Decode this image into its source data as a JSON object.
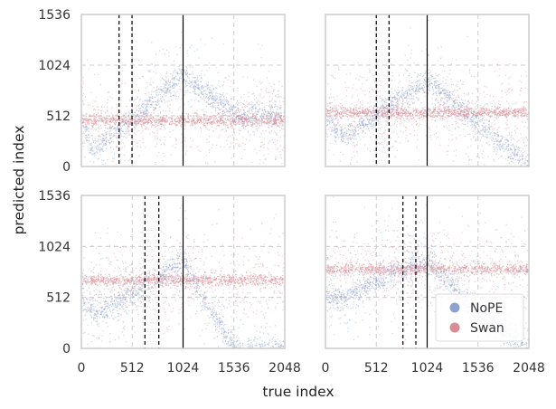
{
  "colors": {
    "nope": "#8ea3cf",
    "swan": "#d98c94",
    "grid": "#cccccc",
    "frame": "#cccccc"
  },
  "chart_data": {
    "type": "scatter",
    "xlabel": "true index",
    "ylabel": "predicted index",
    "xticks": [
      "0",
      "512",
      "1024",
      "1536",
      "2048"
    ],
    "yticks": [
      "0",
      "512",
      "1024",
      "1536"
    ],
    "xlim": [
      0,
      2048
    ],
    "ylim": [
      0,
      1536
    ],
    "legend": {
      "position": "bottom-right",
      "entries": [
        "NoPE",
        "Swan"
      ]
    },
    "panels": [
      {
        "name": "top-left",
        "vlines_dashed": [
          380,
          510
        ],
        "vline_solid": 1024,
        "series": [
          {
            "name": "NoPE",
            "trend_x": [
              0,
              100,
              512,
              1024,
              1300,
              1600,
              2048
            ],
            "trend_y": [
              500,
              170,
              480,
              930,
              700,
              520,
              520
            ]
          },
          {
            "name": "Swan",
            "level": 470
          }
        ]
      },
      {
        "name": "top-right",
        "vlines_dashed": [
          512,
          640
        ],
        "vline_solid": 1024,
        "series": [
          {
            "name": "NoPE",
            "trend_x": [
              0,
              200,
              512,
              1024,
              1500,
              2048
            ],
            "trend_y": [
              500,
              310,
              520,
              880,
              470,
              0
            ]
          },
          {
            "name": "Swan",
            "level": 550
          }
        ]
      },
      {
        "name": "bottom-left",
        "vlines_dashed": [
          640,
          780
        ],
        "vline_solid": 1024,
        "series": [
          {
            "name": "NoPE",
            "trend_x": [
              0,
              150,
              512,
              1024,
              1300,
              1550
            ],
            "trend_y": [
              500,
              340,
              560,
              900,
              380,
              0
            ]
          },
          {
            "name": "Swan",
            "level": 690
          }
        ]
      },
      {
        "name": "bottom-right",
        "vlines_dashed": [
          780,
          910
        ],
        "vline_solid": 1024,
        "series": [
          {
            "name": "NoPE",
            "trend_x": [
              0,
              200,
              512,
              1024,
              1500,
              2048
            ],
            "trend_y": [
              500,
              520,
              670,
              900,
              380,
              0
            ]
          },
          {
            "name": "Swan",
            "level": 800
          }
        ]
      }
    ]
  }
}
